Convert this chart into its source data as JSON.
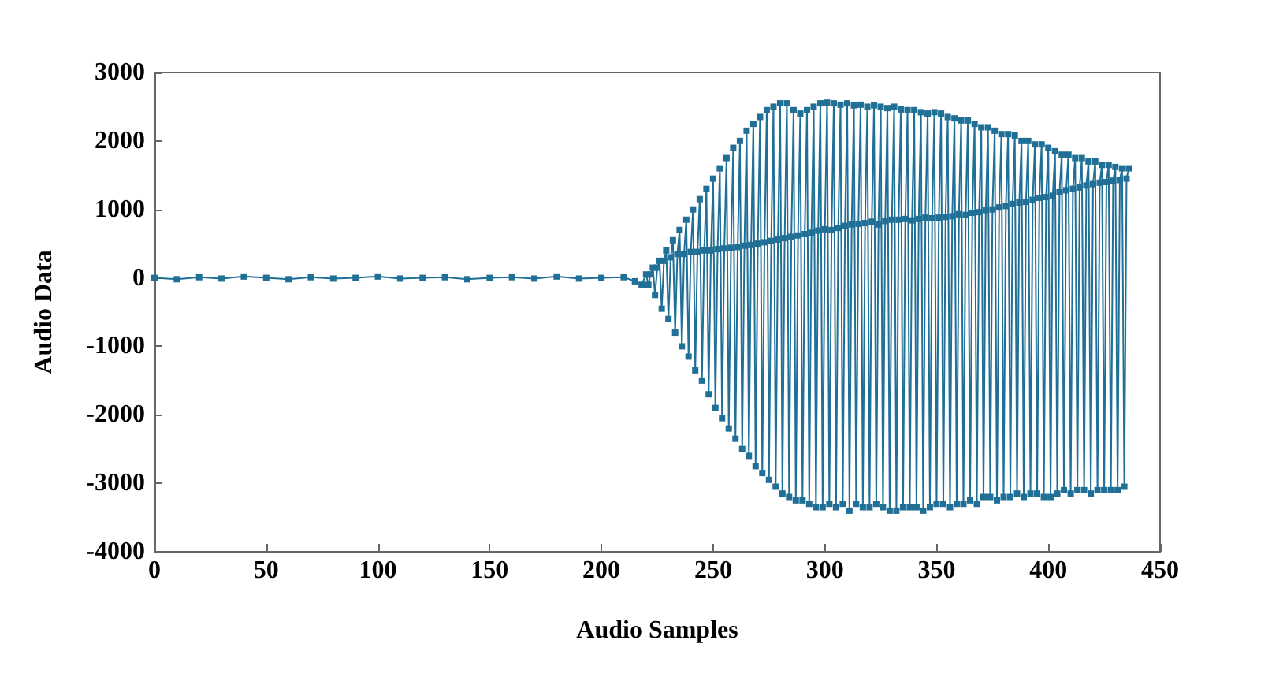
{
  "chart_data": {
    "type": "line",
    "xlabel": "Audio Samples",
    "ylabel": "Audio Data",
    "xlim": [
      0,
      450
    ],
    "xticks": [
      0,
      50,
      100,
      150,
      200,
      250,
      300,
      350,
      400,
      450
    ],
    "ylim": [
      -4000,
      3000
    ],
    "yticks": [
      -4000,
      -3000,
      -2000,
      -1000,
      0,
      1000,
      2000,
      3000
    ],
    "grid": false,
    "marker": "square",
    "line_style": "solid",
    "series": [
      {
        "color": "#1f6f96",
        "x": [
          0,
          10,
          20,
          30,
          40,
          50,
          60,
          70,
          80,
          90,
          100,
          110,
          120,
          130,
          140,
          150,
          160,
          170,
          180,
          190,
          200,
          210,
          215,
          218,
          220,
          221,
          222,
          223,
          224,
          225,
          226,
          227,
          228,
          229,
          230,
          231,
          232,
          233,
          234,
          235,
          236,
          237,
          238,
          239,
          240,
          241,
          242,
          243,
          244,
          245,
          246,
          247,
          248,
          249,
          250,
          251,
          252,
          253,
          254,
          255,
          256,
          257,
          258,
          259,
          260,
          261,
          262,
          263,
          264,
          265,
          266,
          267,
          268,
          269,
          270,
          271,
          272,
          273,
          274,
          275,
          276,
          277,
          278,
          279,
          280,
          281,
          282,
          283,
          284,
          285,
          286,
          287,
          288,
          289,
          290,
          291,
          292,
          293,
          294,
          295,
          296,
          297,
          298,
          299,
          300,
          301,
          302,
          303,
          304,
          305,
          306,
          307,
          308,
          309,
          310,
          311,
          312,
          313,
          314,
          315,
          316,
          317,
          318,
          319,
          320,
          321,
          322,
          323,
          324,
          325,
          326,
          327,
          328,
          329,
          330,
          331,
          332,
          333,
          334,
          335,
          336,
          337,
          338,
          339,
          340,
          341,
          342,
          343,
          344,
          345,
          346,
          347,
          348,
          349,
          350,
          351,
          352,
          353,
          354,
          355,
          356,
          357,
          358,
          359,
          360,
          361,
          362,
          363,
          364,
          365,
          366,
          367,
          368,
          369,
          370,
          371,
          372,
          373,
          374,
          375,
          376,
          377,
          378,
          379,
          380,
          381,
          382,
          383,
          384,
          385,
          386,
          387,
          388,
          389,
          390,
          391,
          392,
          393,
          394,
          395,
          396,
          397,
          398,
          399,
          400,
          401,
          402,
          403,
          404,
          405,
          406,
          407,
          408,
          409,
          410,
          411,
          412,
          413,
          414,
          415,
          416,
          417,
          418,
          419,
          420,
          421,
          422,
          423,
          424,
          425,
          426,
          427,
          428,
          429,
          430,
          431,
          432,
          433,
          434,
          435,
          436
        ],
        "values": [
          0,
          -20,
          10,
          -10,
          20,
          0,
          -20,
          10,
          -10,
          0,
          20,
          -10,
          0,
          10,
          -20,
          0,
          10,
          -10,
          20,
          -10,
          0,
          10,
          -50,
          -100,
          50,
          -100,
          50,
          150,
          -250,
          150,
          250,
          -450,
          250,
          400,
          -600,
          300,
          550,
          -800,
          350,
          700,
          -1000,
          350,
          850,
          -1150,
          380,
          1000,
          -1350,
          380,
          1150,
          -1500,
          400,
          1300,
          -1700,
          400,
          1450,
          -1900,
          420,
          1600,
          -2050,
          430,
          1750,
          -2200,
          440,
          1900,
          -2350,
          450,
          2000,
          -2500,
          470,
          2150,
          -2600,
          480,
          2250,
          -2750,
          500,
          2350,
          -2850,
          520,
          2450,
          -2950,
          540,
          2500,
          -3050,
          560,
          2550,
          -3150,
          580,
          2550,
          -3200,
          600,
          2450,
          -3250,
          620,
          2400,
          -3250,
          640,
          2450,
          -3300,
          660,
          2500,
          -3350,
          690,
          2550,
          -3350,
          710,
          2560,
          -3300,
          700,
          2550,
          -3350,
          730,
          2530,
          -3300,
          760,
          2550,
          -3400,
          780,
          2520,
          -3300,
          790,
          2530,
          -3350,
          800,
          2500,
          -3350,
          820,
          2520,
          -3300,
          780,
          2500,
          -3350,
          830,
          2480,
          -3400,
          850,
          2500,
          -3400,
          850,
          2460,
          -3350,
          860,
          2450,
          -3350,
          840,
          2450,
          -3350,
          860,
          2420,
          -3400,
          880,
          2400,
          -3350,
          870,
          2420,
          -3300,
          880,
          2400,
          -3300,
          890,
          2350,
          -3350,
          900,
          2330,
          -3300,
          930,
          2300,
          -3300,
          920,
          2300,
          -3250,
          950,
          2250,
          -3300,
          960,
          2200,
          -3200,
          990,
          2200,
          -3200,
          1000,
          2150,
          -3250,
          1030,
          2100,
          -3200,
          1050,
          2100,
          -3200,
          1080,
          2080,
          -3150,
          1100,
          2000,
          -3200,
          1110,
          2000,
          -3150,
          1140,
          1950,
          -3150,
          1170,
          1950,
          -3200,
          1180,
          1900,
          -3200,
          1200,
          1850,
          -3150,
          1250,
          1800,
          -3100,
          1280,
          1800,
          -3150,
          1300,
          1750,
          -3100,
          1320,
          1750,
          -3100,
          1350,
          1700,
          -3150,
          1370,
          1700,
          -3100,
          1390,
          1650,
          -3100,
          1400,
          1650,
          -3100,
          1420,
          1620,
          -3100,
          1430,
          1600,
          -3050,
          1450,
          1600
        ]
      }
    ]
  }
}
